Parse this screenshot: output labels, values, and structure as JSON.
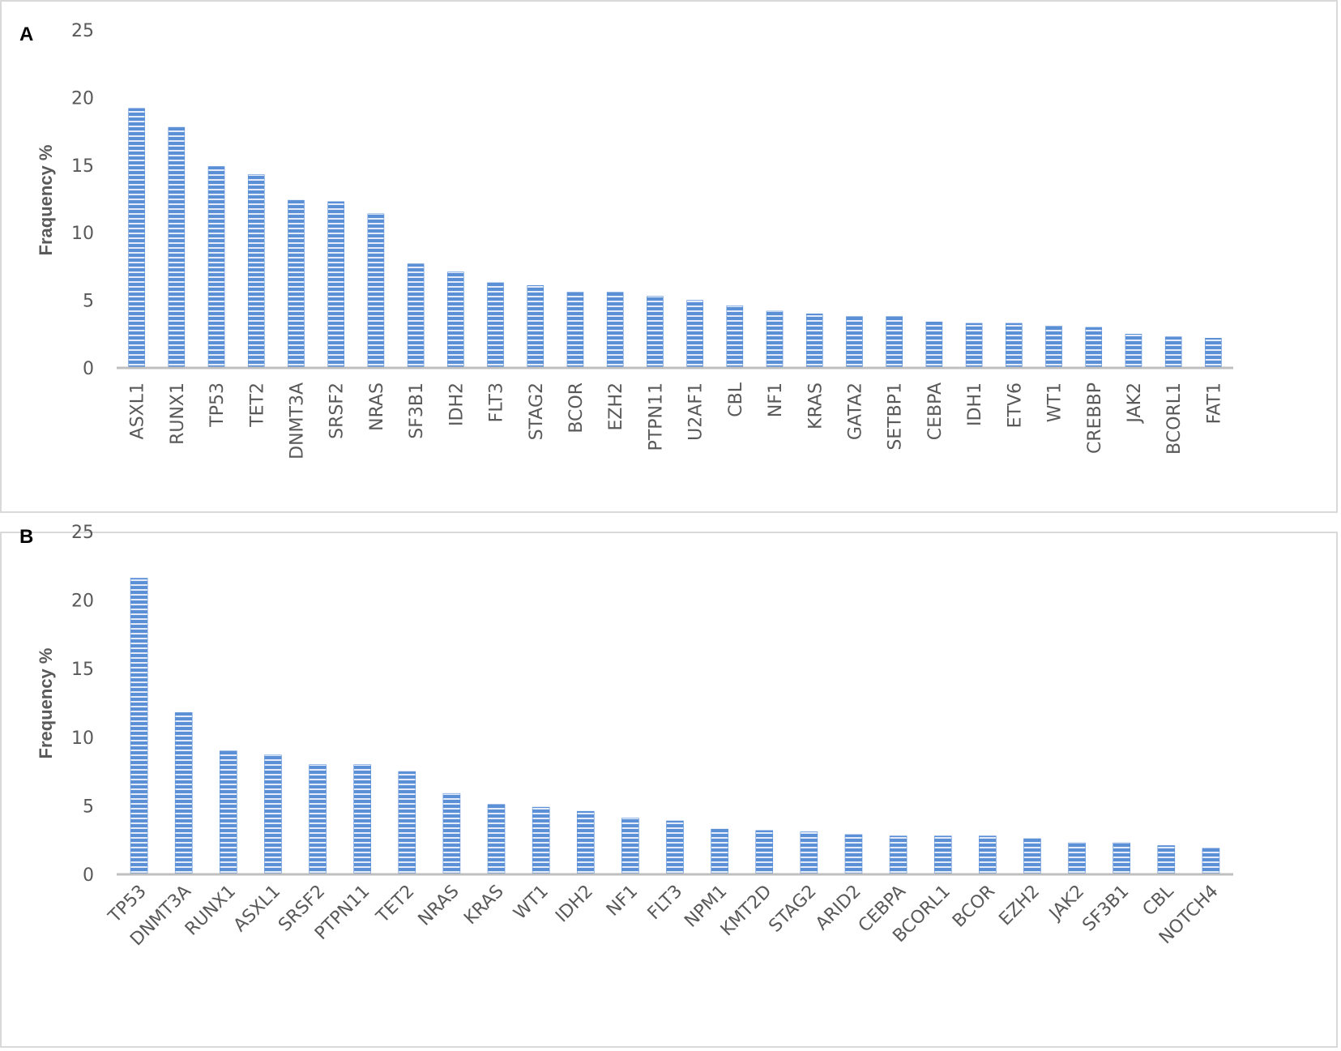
{
  "colors": {
    "bar": "#5b8fd6",
    "bar_stripe": "#e3ecf8",
    "axis": "#bfbfbf",
    "text": "#595959"
  },
  "chart_data": [
    {
      "panel": "A",
      "type": "bar",
      "ylabel": "Fraquency %",
      "ylim": [
        0,
        25
      ],
      "yticks": [
        0,
        5,
        10,
        15,
        20,
        25
      ],
      "grid": false,
      "legend": "none",
      "categories": [
        "ASXL1",
        "RUNX1",
        "TP53",
        "TET2",
        "DNMT3A",
        "SRSF2",
        "NRAS",
        "SF3B1",
        "IDH2",
        "FLT3",
        "STAG2",
        "BCOR",
        "EZH2",
        "PTPN11",
        "U2AF1",
        "CBL",
        "NF1",
        "KRAS",
        "GATA2",
        "SETBP1",
        "CEBPA",
        "IDH1",
        "ETV6",
        "WT1",
        "CREBBP",
        "JAK2",
        "BCORL1",
        "FAT1"
      ],
      "values": [
        19.2,
        17.8,
        14.9,
        14.3,
        12.4,
        12.3,
        11.4,
        7.7,
        7.1,
        6.3,
        6.1,
        5.6,
        5.6,
        5.3,
        5.0,
        4.6,
        4.2,
        4.0,
        3.8,
        3.8,
        3.4,
        3.3,
        3.3,
        3.1,
        3.0,
        2.5,
        2.3,
        2.2
      ],
      "label_rotation": -90
    },
    {
      "panel": "B",
      "type": "bar",
      "ylabel": "Frequency %",
      "ylim": [
        0,
        25
      ],
      "yticks": [
        0,
        5,
        10,
        15,
        20,
        25
      ],
      "grid": false,
      "legend": "none",
      "categories": [
        "TP53",
        "DNMT3A",
        "RUNX1",
        "ASXL1",
        "SRSF2",
        "PTPN11",
        "TET2",
        "NRAS",
        "KRAS",
        "WT1",
        "IDH2",
        "NF1",
        "FLT3",
        "NPM1",
        "KMT2D",
        "STAG2",
        "ARID2",
        "CEBPA",
        "BCORL1",
        "BCOR",
        "EZH2",
        "JAK2",
        "SF3B1",
        "CBL",
        "NOTCH4"
      ],
      "values": [
        21.6,
        11.8,
        9.0,
        8.7,
        8.0,
        8.0,
        7.5,
        5.9,
        5.1,
        4.9,
        4.6,
        4.1,
        3.9,
        3.3,
        3.2,
        3.1,
        2.9,
        2.8,
        2.8,
        2.8,
        2.6,
        2.3,
        2.3,
        2.1,
        1.9
      ],
      "label_rotation": -45
    }
  ]
}
